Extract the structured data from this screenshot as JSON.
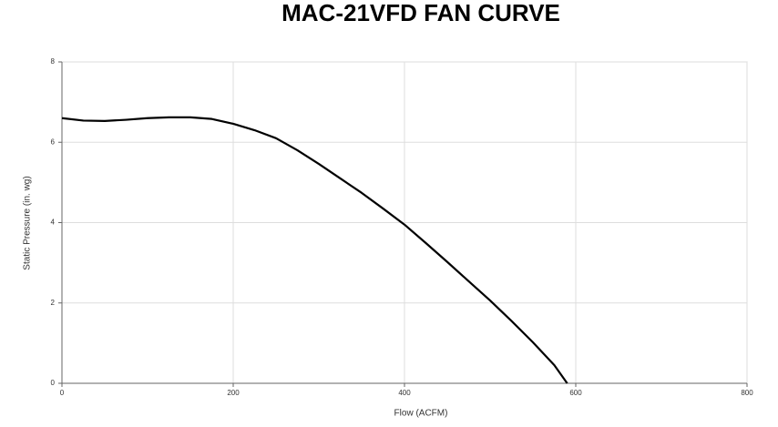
{
  "chart_data": {
    "type": "line",
    "title": "MAC-21VFD FAN CURVE",
    "x_label": "Flow (ACFM)",
    "y_label": "Static Pressure (in. wg)",
    "x": [
      0,
      25,
      50,
      75,
      100,
      125,
      150,
      175,
      200,
      225,
      250,
      275,
      300,
      325,
      350,
      375,
      400,
      425,
      450,
      475,
      500,
      525,
      550,
      575,
      590
    ],
    "series": [
      {
        "name": "Fan Curve",
        "color": "#000000",
        "values": [
          6.6,
          6.54,
          6.53,
          6.56,
          6.6,
          6.62,
          6.62,
          6.58,
          6.46,
          6.3,
          6.1,
          5.8,
          5.46,
          5.1,
          4.74,
          4.35,
          3.95,
          3.49,
          3.02,
          2.54,
          2.06,
          1.55,
          1.02,
          0.45,
          0
        ]
      }
    ],
    "xlim": [
      0,
      800
    ],
    "xticks": [
      0,
      200,
      400,
      600,
      800
    ],
    "ylim": [
      0,
      8
    ],
    "yticks": [
      0,
      2,
      4,
      6,
      8
    ],
    "grid": true
  }
}
